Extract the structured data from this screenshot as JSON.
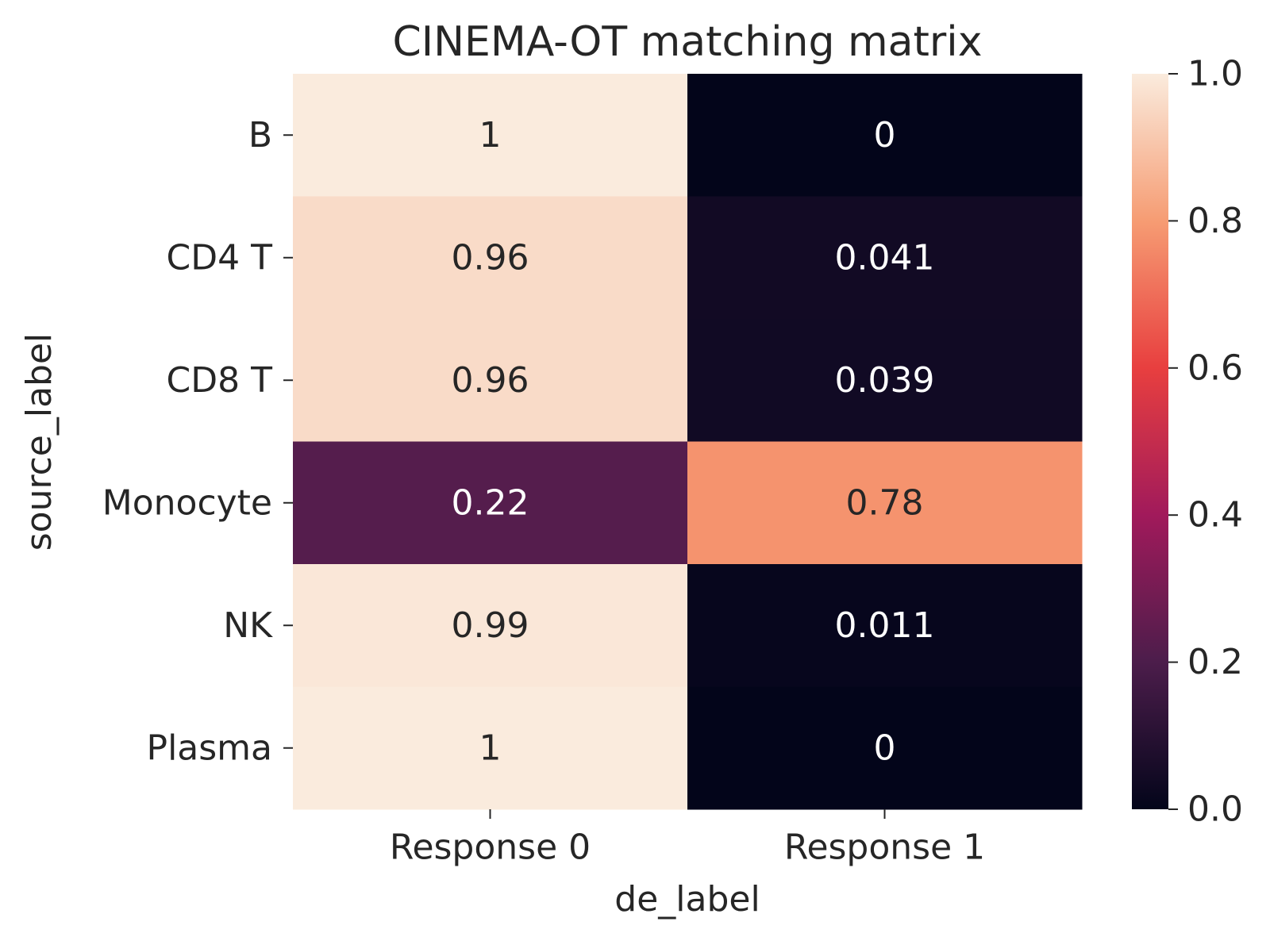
{
  "chart_data": {
    "type": "heatmap",
    "title": "CINEMA-OT matching matrix",
    "xlabel": "de_label",
    "ylabel": "source_label",
    "x_categories": [
      "Response 0",
      "Response 1"
    ],
    "y_categories": [
      "B",
      "CD4 T",
      "CD8 T",
      "Monocyte",
      "NK",
      "Plasma"
    ],
    "values": [
      [
        1,
        0
      ],
      [
        0.96,
        0.041
      ],
      [
        0.96,
        0.039
      ],
      [
        0.22,
        0.78
      ],
      [
        0.99,
        0.011
      ],
      [
        1,
        0
      ]
    ],
    "annotations": [
      [
        "1",
        "0"
      ],
      [
        "0.96",
        "0.041"
      ],
      [
        "0.96",
        "0.039"
      ],
      [
        "0.22",
        "0.78"
      ],
      [
        "0.99",
        "0.011"
      ],
      [
        "1",
        "0"
      ]
    ],
    "colormap": "rocket",
    "colormap_stops": [
      "#03051a",
      "#4c1d4b",
      "#a11a5b",
      "#e83f3f",
      "#f69c73",
      "#faebdd"
    ],
    "colorbar": {
      "range": [
        0,
        1
      ],
      "ticks": [
        0.0,
        0.2,
        0.4,
        0.6,
        0.8,
        1.0
      ],
      "tick_labels": [
        "0.0",
        "0.2",
        "0.4",
        "0.6",
        "0.8",
        "1.0"
      ]
    }
  }
}
